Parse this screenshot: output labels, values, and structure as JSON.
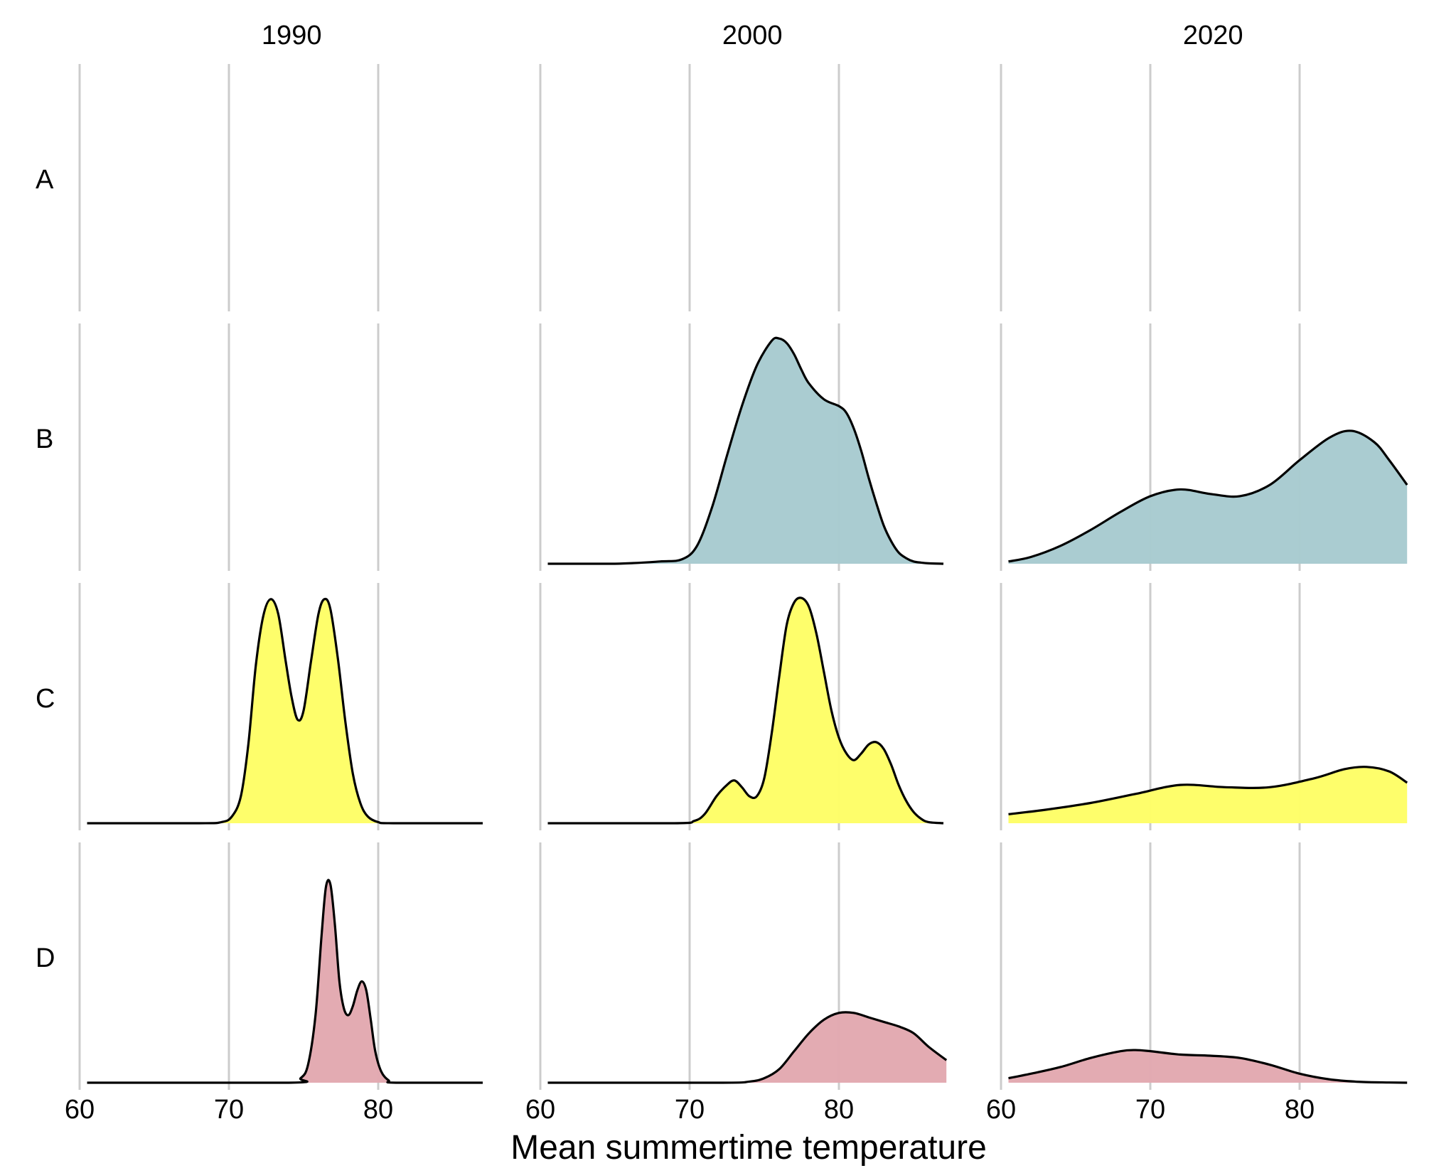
{
  "chart_data": {
    "type": "area",
    "title": "",
    "xlabel": "Mean summertime temperature",
    "ylabel": "",
    "xlim": [
      60,
      87
    ],
    "xticks": [
      60,
      70,
      80
    ],
    "grid": true,
    "columns": [
      "1990",
      "2000",
      "2020"
    ],
    "rows": [
      "A",
      "B",
      "C",
      "D"
    ],
    "colors": {
      "B": "#a7cad0",
      "C": "#fefe66",
      "D": "#e2a8af"
    },
    "density_peak_scale": 0.88,
    "panels": [
      {
        "row": "A",
        "column": "1990",
        "x": [],
        "density": []
      },
      {
        "row": "A",
        "column": "2000",
        "x": [],
        "density": []
      },
      {
        "row": "A",
        "column": "2020",
        "x": [],
        "density": []
      },
      {
        "row": "B",
        "column": "1990",
        "x": [],
        "density": []
      },
      {
        "row": "B",
        "column": "2000",
        "x": [
          60.5,
          65,
          68,
          69.5,
          70.5,
          71.5,
          72.5,
          73.5,
          74.5,
          75.5,
          76,
          76.5,
          77,
          77.5,
          78,
          79,
          80,
          80.5,
          81,
          81.5,
          82,
          82.5,
          83,
          83.5,
          84,
          84.5,
          85,
          85.5,
          86,
          87
        ],
        "density": [
          0,
          0,
          0.01,
          0.02,
          0.08,
          0.25,
          0.48,
          0.7,
          0.88,
          0.99,
          1.0,
          0.98,
          0.93,
          0.86,
          0.8,
          0.73,
          0.7,
          0.67,
          0.6,
          0.5,
          0.38,
          0.27,
          0.17,
          0.1,
          0.05,
          0.025,
          0.01,
          0.005,
          0.002,
          0
        ]
      },
      {
        "row": "B",
        "column": "2020",
        "x": [
          60.5,
          62,
          64,
          66,
          68,
          70,
          72,
          74,
          76,
          78,
          80,
          82,
          83.5,
          85,
          86,
          87.2
        ],
        "density": [
          0.01,
          0.03,
          0.08,
          0.15,
          0.23,
          0.3,
          0.33,
          0.31,
          0.3,
          0.35,
          0.46,
          0.56,
          0.59,
          0.54,
          0.46,
          0.35
        ]
      },
      {
        "row": "C",
        "column": "1990",
        "x": [
          60.5,
          68,
          69.5,
          70.2,
          70.8,
          71.3,
          71.8,
          72.3,
          72.8,
          73.3,
          73.8,
          74.2,
          74.6,
          75,
          75.5,
          76,
          76.4,
          76.8,
          77.3,
          77.8,
          78.3,
          78.8,
          79.3,
          80,
          81,
          87
        ],
        "density": [
          0,
          0,
          0.005,
          0.03,
          0.12,
          0.35,
          0.7,
          0.92,
          0.995,
          0.93,
          0.72,
          0.56,
          0.46,
          0.5,
          0.72,
          0.93,
          0.995,
          0.95,
          0.73,
          0.45,
          0.22,
          0.09,
          0.03,
          0.005,
          0,
          0
        ]
      },
      {
        "row": "C",
        "column": "2000",
        "x": [
          60.5,
          69,
          70.3,
          71,
          71.8,
          72.5,
          73,
          73.5,
          74,
          74.5,
          75,
          75.5,
          76,
          76.5,
          77,
          77.5,
          78,
          78.5,
          79,
          79.5,
          80,
          80.5,
          81,
          81.5,
          82,
          82.5,
          83,
          83.5,
          84,
          84.5,
          85,
          85.5,
          86,
          87
        ],
        "density": [
          0,
          0,
          0.01,
          0.04,
          0.12,
          0.17,
          0.19,
          0.16,
          0.12,
          0.12,
          0.2,
          0.4,
          0.65,
          0.88,
          0.98,
          1.0,
          0.96,
          0.84,
          0.67,
          0.5,
          0.38,
          0.31,
          0.28,
          0.31,
          0.35,
          0.36,
          0.33,
          0.26,
          0.17,
          0.1,
          0.05,
          0.02,
          0.005,
          0
        ]
      },
      {
        "row": "C",
        "column": "2020",
        "x": [
          60.5,
          63,
          66,
          69,
          72,
          75,
          78,
          81,
          83,
          84.5,
          86,
          87.2
        ],
        "density": [
          0.04,
          0.06,
          0.09,
          0.13,
          0.17,
          0.16,
          0.16,
          0.2,
          0.24,
          0.25,
          0.23,
          0.18
        ]
      },
      {
        "row": "D",
        "column": "1990",
        "x": [
          60.5,
          74,
          74.8,
          75.3,
          75.8,
          76.2,
          76.5,
          76.8,
          77.1,
          77.4,
          77.7,
          78,
          78.3,
          78.6,
          78.9,
          79.2,
          79.5,
          79.8,
          80.2,
          80.7,
          81.2,
          87
        ],
        "density": [
          0,
          0,
          0.02,
          0.08,
          0.3,
          0.65,
          0.87,
          0.88,
          0.7,
          0.45,
          0.33,
          0.3,
          0.34,
          0.41,
          0.45,
          0.41,
          0.28,
          0.14,
          0.05,
          0.01,
          0,
          0
        ]
      },
      {
        "row": "D",
        "column": "2000",
        "x": [
          60.5,
          72,
          74,
          75,
          76,
          77,
          78,
          79,
          80,
          81,
          82,
          83,
          84,
          85,
          86,
          87.2
        ],
        "density": [
          0,
          0,
          0.005,
          0.02,
          0.06,
          0.14,
          0.22,
          0.28,
          0.31,
          0.31,
          0.29,
          0.27,
          0.25,
          0.22,
          0.16,
          0.1
        ]
      },
      {
        "row": "D",
        "column": "2020",
        "x": [
          60.5,
          62,
          64,
          66,
          68,
          69,
          70,
          72,
          74,
          76,
          78,
          80,
          82,
          84,
          86,
          87.2
        ],
        "density": [
          0.02,
          0.04,
          0.07,
          0.11,
          0.14,
          0.145,
          0.14,
          0.125,
          0.12,
          0.11,
          0.08,
          0.04,
          0.015,
          0.004,
          0.001,
          0
        ]
      }
    ]
  }
}
